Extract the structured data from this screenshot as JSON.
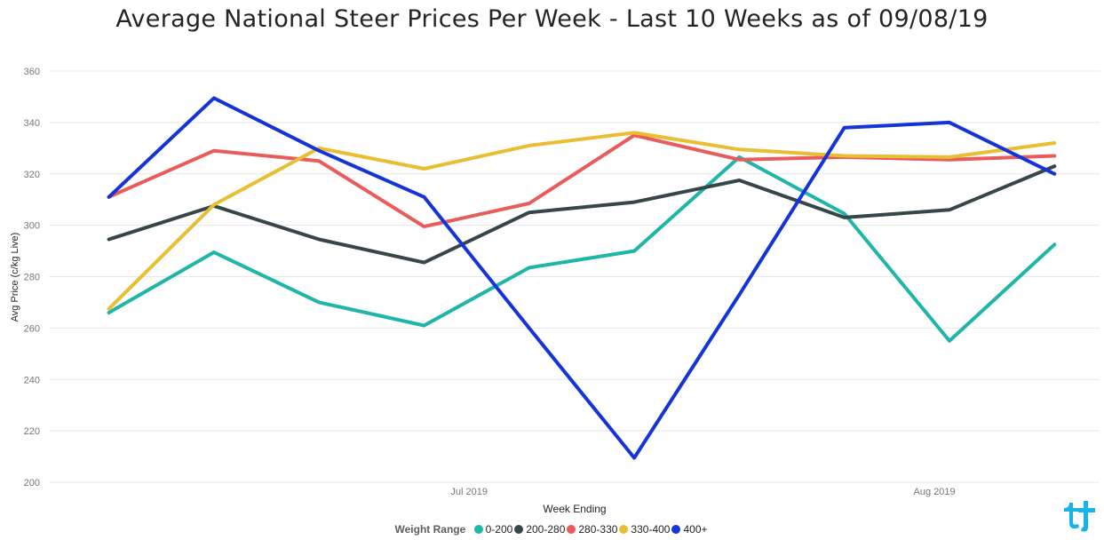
{
  "chart_data": {
    "type": "line",
    "title": "Average National Steer Prices Per Week - Last 10 Weeks as of 09/08/19",
    "xlabel": "Week Ending",
    "ylabel": "Avg Price (c/kg Live)",
    "ylim": [
      200,
      360
    ],
    "yticks": [
      200,
      220,
      240,
      260,
      280,
      300,
      320,
      340,
      360
    ],
    "xlim": [
      "2019-06-03",
      "2019-08-12"
    ],
    "xticks": [
      {
        "date": "2019-07-01",
        "label": "Jul 2019"
      },
      {
        "date": "2019-08-01",
        "label": "Aug 2019"
      }
    ],
    "x": [
      "2019-06-07",
      "2019-06-14",
      "2019-06-21",
      "2019-06-28",
      "2019-07-05",
      "2019-07-12",
      "2019-07-19",
      "2019-07-26",
      "2019-08-02",
      "2019-08-09"
    ],
    "series": [
      {
        "name": "0-200",
        "color": "#1fb5a8",
        "values": [
          266,
          289.5,
          270,
          261,
          283.5,
          290,
          326.5,
          304.5,
          255,
          292.5
        ]
      },
      {
        "name": "200-280",
        "color": "#374649",
        "values": [
          294.5,
          307.5,
          294.5,
          285.5,
          305,
          309,
          317.5,
          303,
          306,
          323
        ]
      },
      {
        "name": "280-330",
        "color": "#e85c5c",
        "values": [
          311,
          329,
          325,
          299.5,
          308.5,
          335,
          325.5,
          326.5,
          325.5,
          327
        ]
      },
      {
        "name": "330-400",
        "color": "#e8bf33",
        "values": [
          267.5,
          308,
          330,
          322,
          331,
          336,
          329.5,
          327,
          326.5,
          332
        ]
      },
      {
        "name": "400+",
        "color": "#1434d6",
        "values": [
          311,
          349.5,
          329,
          311,
          260,
          209.5,
          273,
          338,
          340,
          320
        ]
      }
    ],
    "grid": true,
    "legend": {
      "title": "Weight Range",
      "placement": "bottom-center"
    }
  },
  "branding": {
    "logo_icon": "tplus-logo-icon",
    "logo_color": "#1ab3e6"
  }
}
